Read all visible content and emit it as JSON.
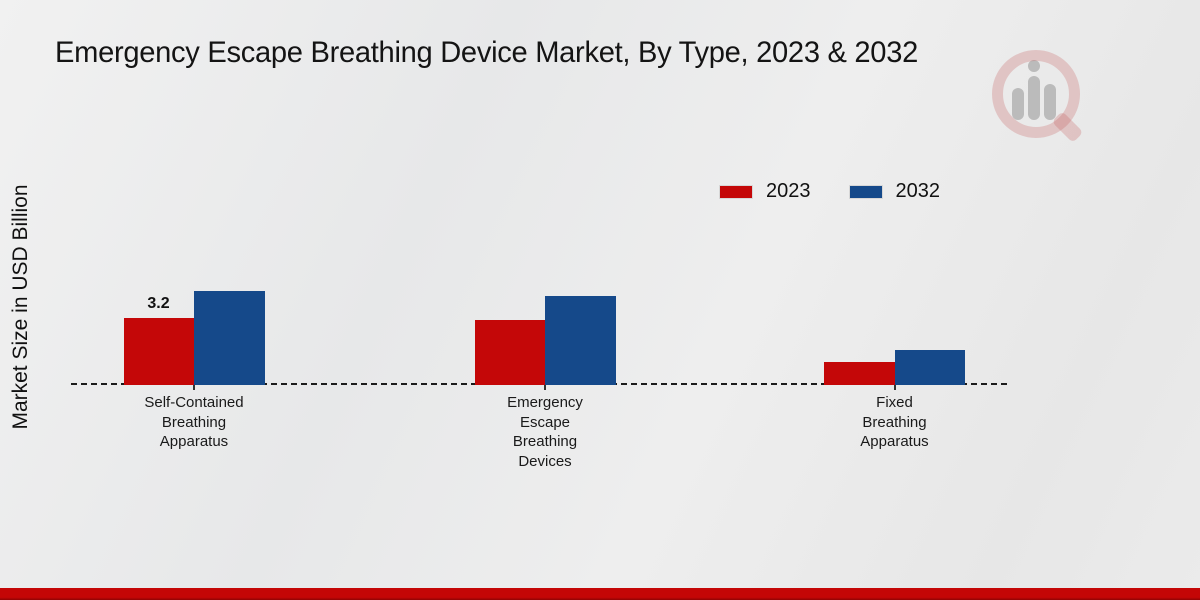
{
  "chart_data": {
    "type": "bar",
    "title": "Emergency Escape Breathing Device Market, By Type, 2023 & 2032",
    "ylabel": "Market Size in USD Billion",
    "xlabel": "",
    "categories": [
      "Self-Contained\nBreathing\nApparatus",
      "Emergency\nEscape\nBreathing\nDevices",
      "Fixed\nBreathing\nApparatus"
    ],
    "series": [
      {
        "name": "2023",
        "color": "#c40708",
        "values": [
          3.2,
          3.1,
          1.1
        ]
      },
      {
        "name": "2032",
        "color": "#15498a",
        "values": [
          4.5,
          4.3,
          1.7
        ]
      }
    ],
    "bar_labels": [
      {
        "series_index": 0,
        "category_index": 0,
        "text": "3.2"
      }
    ],
    "baseline_style": "dashed",
    "grid": false,
    "legend_position": "top-right"
  },
  "branding": {
    "logo_icon": "magnifier-bar-chart-watermark"
  },
  "footer": {
    "accent_color": "#c40606"
  },
  "colors": {
    "series_2023": "#c40708",
    "series_2032": "#15498a",
    "background": "#eaeaea",
    "baseline": "#1c1c1c"
  }
}
